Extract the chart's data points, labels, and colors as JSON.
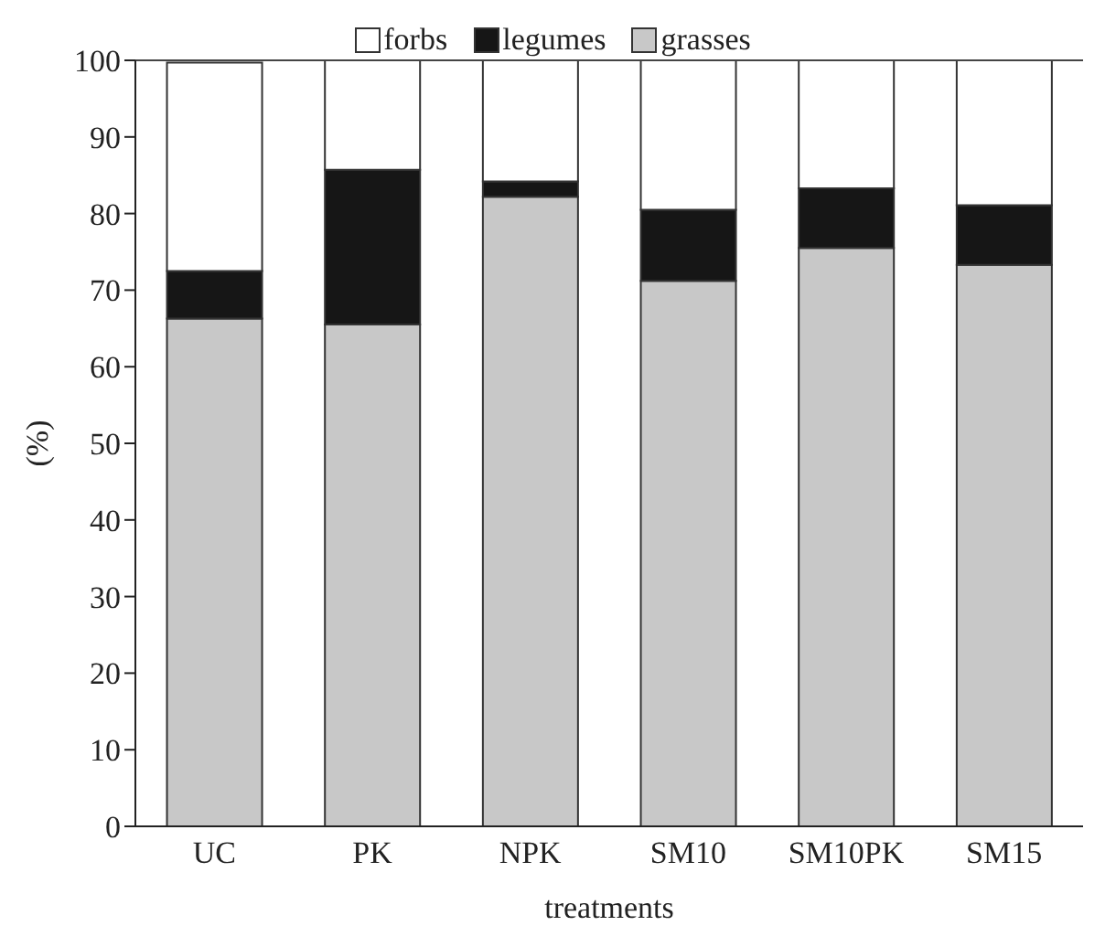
{
  "chart_data": {
    "type": "bar",
    "stacked": true,
    "xlabel": "treatments",
    "ylabel": "(%)",
    "categories": [
      "UC",
      "PK",
      "NPK",
      "SM10",
      "SM10PK",
      "SM15"
    ],
    "series": [
      {
        "name": "grasses",
        "color": "#c8c8c8",
        "values": [
          66.3,
          65.5,
          82.2,
          71.2,
          75.5,
          73.3
        ]
      },
      {
        "name": "legumes",
        "color": "#161616",
        "values": [
          6.2,
          20.2,
          2.0,
          9.3,
          7.8,
          7.8
        ]
      },
      {
        "name": "forbs",
        "color": "#ffffff",
        "values": [
          27.2,
          14.3,
          15.8,
          19.5,
          16.7,
          18.9
        ]
      }
    ],
    "ylim": [
      0,
      100
    ],
    "yticks": [
      0,
      10,
      20,
      30,
      40,
      50,
      60,
      70,
      80,
      90,
      100
    ],
    "grid": false,
    "legend": "top"
  }
}
